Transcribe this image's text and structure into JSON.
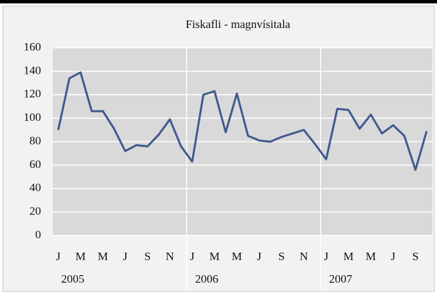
{
  "chart_data": {
    "type": "line",
    "title": "Fiskafli - magnvísitala",
    "categories": [
      "J",
      null,
      "M",
      null,
      "M",
      null,
      "J",
      null,
      "S",
      null,
      "N",
      null,
      "J",
      null,
      "M",
      null,
      "M",
      null,
      "J",
      null,
      "S",
      null,
      "N",
      null,
      "J",
      null,
      "M",
      null,
      "M",
      null,
      "J",
      null,
      "S",
      null
    ],
    "groups": [
      "2005",
      "2006",
      "2007"
    ],
    "series": [
      {
        "color": "#41598f",
        "values": [
          90,
          134,
          139,
          106,
          106,
          91,
          72,
          77,
          76,
          86,
          99,
          76,
          63,
          120,
          123,
          88,
          121,
          85,
          81,
          80,
          84,
          87,
          90,
          78,
          65,
          108,
          107,
          91,
          103,
          87,
          94,
          85,
          56,
          89
        ]
      }
    ],
    "ylim": [
      0,
      160
    ],
    "yticks": [
      0,
      20,
      40,
      60,
      80,
      100,
      120,
      140,
      160
    ],
    "grid": true
  }
}
